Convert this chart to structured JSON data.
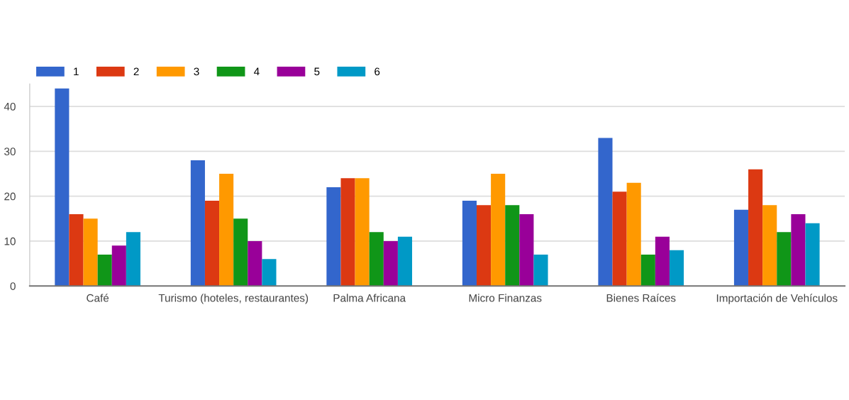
{
  "chart_data": {
    "type": "bar",
    "categories": [
      "Café",
      "Turismo (hoteles, restaurantes)",
      "Palma Africana",
      "Micro Finanzas",
      "Bienes Raíces",
      "Importación de Vehículos"
    ],
    "series": [
      {
        "name": "1",
        "color": "#3366cc",
        "values": [
          44,
          28,
          22,
          19,
          33,
          17
        ]
      },
      {
        "name": "2",
        "color": "#dc3912",
        "values": [
          16,
          19,
          24,
          18,
          21,
          26
        ]
      },
      {
        "name": "3",
        "color": "#ff9900",
        "values": [
          15,
          25,
          24,
          25,
          23,
          18
        ]
      },
      {
        "name": "4",
        "color": "#109618",
        "values": [
          7,
          15,
          12,
          18,
          7,
          12
        ]
      },
      {
        "name": "5",
        "color": "#990099",
        "values": [
          9,
          10,
          10,
          16,
          11,
          16
        ]
      },
      {
        "name": "6",
        "color": "#0099c6",
        "values": [
          12,
          6,
          11,
          7,
          8,
          14
        ]
      }
    ],
    "ylim": [
      0,
      45
    ],
    "yticks": [
      0,
      10,
      20,
      30,
      40
    ],
    "grid": "y",
    "legend": "top left"
  }
}
